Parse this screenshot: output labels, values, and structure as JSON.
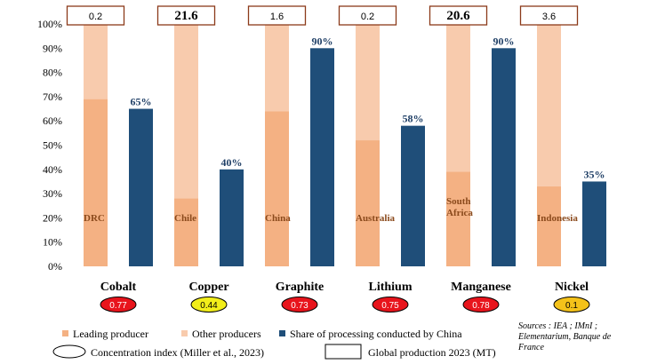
{
  "chart_data": {
    "type": "bar",
    "ylim": [
      0,
      100
    ],
    "yticks": [
      "0%",
      "10%",
      "20%",
      "30%",
      "40%",
      "50%",
      "60%",
      "70%",
      "80%",
      "90%",
      "100%"
    ],
    "categories": [
      {
        "name": "Cobalt",
        "leading_producer": "DRC",
        "leading_share": 69,
        "china_processing": 65,
        "china_label": "65%",
        "concentration_index": "0.77",
        "concentration_color": "#e8141c",
        "global_production": "0.2",
        "production_bold": false
      },
      {
        "name": "Copper",
        "leading_producer": "Chile",
        "leading_share": 28,
        "china_processing": 40,
        "china_label": "40%",
        "concentration_index": "0.44",
        "concentration_color": "#f2ee1a",
        "global_production": "21.6",
        "production_bold": true
      },
      {
        "name": "Graphite",
        "leading_producer": "China",
        "leading_share": 64,
        "china_processing": 90,
        "china_label": "90%",
        "concentration_index": "0.73",
        "concentration_color": "#e8141c",
        "global_production": "1.6",
        "production_bold": false
      },
      {
        "name": "Lithium",
        "leading_producer": "Australia",
        "leading_share": 52,
        "china_processing": 58,
        "china_label": "58%",
        "concentration_index": "0.75",
        "concentration_color": "#e8141c",
        "global_production": "0.2",
        "production_bold": false
      },
      {
        "name": "Manganese",
        "leading_producer": "South Africa",
        "leading_share": 39,
        "china_processing": 90,
        "china_label": "90%",
        "concentration_index": "0.78",
        "concentration_color": "#e8141c",
        "global_production": "20.6",
        "production_bold": true
      },
      {
        "name": "Nickel",
        "leading_producer": "Indonesia",
        "leading_share": 33,
        "china_processing": 35,
        "china_label": "35%",
        "concentration_index": "0.1",
        "concentration_color": "#f4c21a",
        "global_production": "3.6",
        "production_bold": false
      }
    ],
    "legend": {
      "leading": "Leading producer",
      "other": "Other producers",
      "china": "Share of processing conducted by  China",
      "concentration": "Concentration index (Miller et al., 2023)",
      "production": "Global production 2023 (MT)"
    },
    "source": "Sources : IEA ; IMnI ; Elementarium, Banque de France",
    "colors": {
      "leading": "#f4b183",
      "other": "#f8cbad",
      "china": "#1f4e79",
      "box_border": "#8b3a1a",
      "pct_text": "#1f3f66",
      "producer_text": "#8b4a1c"
    }
  }
}
